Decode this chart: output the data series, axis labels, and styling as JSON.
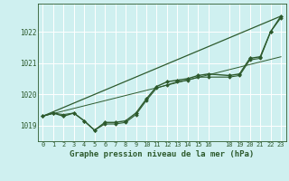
{
  "background_color": "#cff0f0",
  "grid_color": "#ffffff",
  "line_color": "#2d5a2d",
  "xlabel": "Graphe pression niveau de la mer (hPa)",
  "ylim": [
    1018.5,
    1022.9
  ],
  "xlim": [
    -0.5,
    23.5
  ],
  "yticks": [
    1019,
    1020,
    1021,
    1022
  ],
  "xtick_labels": [
    "0",
    "1",
    "2",
    "3",
    "4",
    "5",
    "6",
    "7",
    "8",
    "9",
    "10",
    "11",
    "12",
    "13",
    "14",
    "15",
    "16",
    "18",
    "19",
    "20",
    "21",
    "22",
    "23"
  ],
  "xtick_pos": [
    0,
    1,
    2,
    3,
    4,
    5,
    6,
    7,
    8,
    9,
    10,
    11,
    12,
    13,
    14,
    15,
    16,
    18,
    19,
    20,
    21,
    22,
    23
  ],
  "series": [
    {
      "x": [
        0,
        1,
        2,
        3,
        4,
        5,
        6,
        7,
        8,
        9,
        10,
        11,
        12,
        13,
        14,
        15,
        16,
        18,
        19,
        20,
        21,
        22,
        23
      ],
      "y": [
        1019.3,
        1019.4,
        1019.3,
        1019.4,
        1019.15,
        1018.85,
        1019.1,
        1019.1,
        1019.15,
        1019.4,
        1019.85,
        1020.25,
        1020.4,
        1020.45,
        1020.5,
        1020.6,
        1020.65,
        1020.6,
        1020.65,
        1021.15,
        1021.2,
        1022.0,
        1022.5
      ],
      "color": "#2d5a2d",
      "lw": 1.0,
      "marker": "D",
      "ms": 2.0
    },
    {
      "x": [
        0,
        1,
        2,
        3,
        4,
        5,
        6,
        7,
        8,
        9,
        10,
        11,
        12,
        13,
        14,
        15,
        16,
        18,
        19,
        20,
        21,
        22,
        23
      ],
      "y": [
        1019.3,
        1019.4,
        1019.35,
        1019.4,
        1019.15,
        1018.85,
        1019.05,
        1019.05,
        1019.1,
        1019.35,
        1019.8,
        1020.2,
        1020.3,
        1020.4,
        1020.45,
        1020.55,
        1020.55,
        1020.55,
        1020.6,
        1021.1,
        1021.15,
        1022.0,
        1022.45
      ],
      "color": "#2d5a2d",
      "lw": 0.8,
      "marker": "D",
      "ms": 1.8
    },
    {
      "x": [
        0,
        23
      ],
      "y": [
        1019.3,
        1022.5
      ],
      "color": "#2d5a2d",
      "lw": 0.9,
      "marker": null
    },
    {
      "x": [
        0,
        23
      ],
      "y": [
        1019.3,
        1021.2
      ],
      "color": "#2d5a2d",
      "lw": 0.7,
      "marker": null
    }
  ]
}
